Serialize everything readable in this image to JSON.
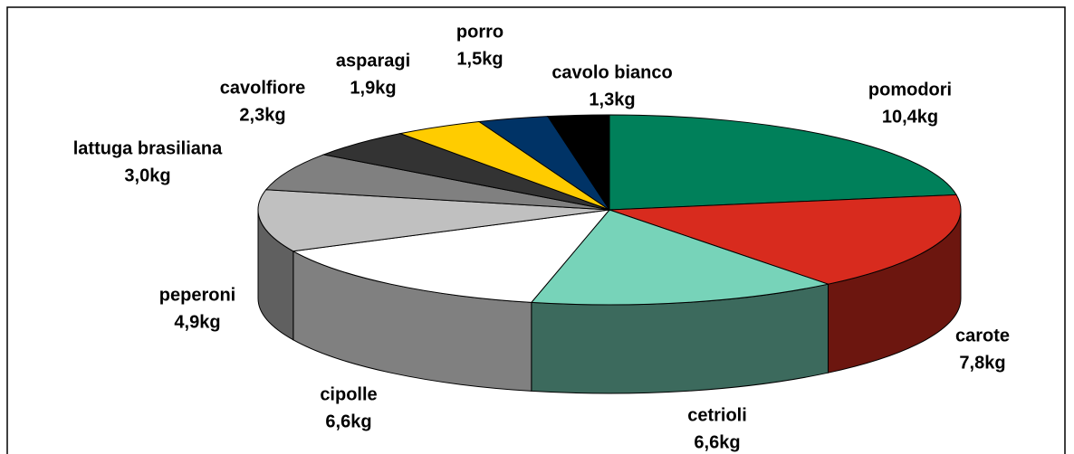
{
  "chart_data": {
    "type": "pie3d",
    "categories": [
      "pomodori",
      "carote",
      "cetrioli",
      "cipolle",
      "peperoni",
      "lattuga brasiliana",
      "cavolfiore",
      "asparagi",
      "porro",
      "cavolo bianco"
    ],
    "values": [
      10.4,
      7.8,
      6.6,
      6.6,
      4.9,
      3.0,
      2.3,
      1.9,
      1.5,
      1.3
    ],
    "value_labels": [
      "10,4kg",
      "7,8kg",
      "6,6kg",
      "6,6kg",
      "4,9kg",
      "3,0kg",
      "2,3kg",
      "1,9kg",
      "1,5kg",
      "1,3kg"
    ],
    "colors": [
      "#00805a",
      "#d82b1e",
      "#77d3b9",
      "#ffffff",
      "#c0c0c0",
      "#808080",
      "#333333",
      "#ffcc00",
      "#003366",
      "#000000"
    ]
  }
}
